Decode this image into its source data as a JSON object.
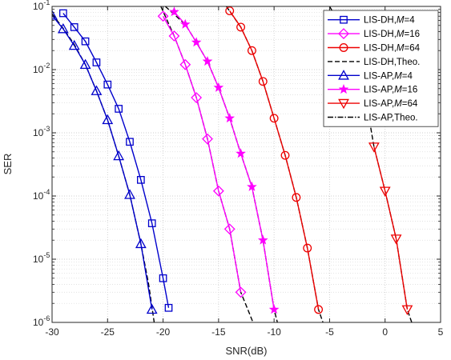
{
  "chart_data": {
    "type": "line",
    "title": "",
    "xlabel": "SNR(dB)",
    "ylabel": "SER",
    "xlim": [
      -30,
      5
    ],
    "ylim": [
      1e-06,
      0.1
    ],
    "yscale": "log",
    "grid": "major and minor, dotted",
    "legend_placement": "top-right",
    "x_ticks": [
      "-30",
      "-25",
      "-20",
      "-15",
      "-10",
      "-5",
      "0",
      "5"
    ],
    "y_ticks": [
      {
        "base": "10",
        "exp": "-6"
      },
      {
        "base": "10",
        "exp": "-5"
      },
      {
        "base": "10",
        "exp": "-4"
      },
      {
        "base": "10",
        "exp": "-3"
      },
      {
        "base": "10",
        "exp": "-2"
      },
      {
        "base": "10",
        "exp": "-1"
      }
    ],
    "series": [
      {
        "name": "LIS-DH,M=4",
        "name_prefix": "LIS-DH,",
        "name_var": "M",
        "name_suffix": "=4",
        "color": "#0000CC",
        "marker": "square",
        "x": [
          -29,
          -28,
          -27,
          -26,
          -25,
          -24,
          -23,
          -22,
          -21,
          -20,
          -19.5
        ],
        "y": [
          0.078,
          0.047,
          0.028,
          0.013,
          0.0058,
          0.0024,
          0.00072,
          0.00018,
          3.7e-05,
          5e-06,
          1.7e-06
        ]
      },
      {
        "name": "LIS-DH,M=16",
        "name_prefix": "LIS-DH,",
        "name_var": "M",
        "name_suffix": "=16",
        "color": "#FF00FF",
        "marker": "diamond",
        "x": [
          -20,
          -19,
          -18,
          -17,
          -16,
          -15,
          -14,
          -13
        ],
        "y": [
          0.07,
          0.034,
          0.012,
          0.0036,
          0.0008,
          0.00012,
          3e-05,
          3e-06
        ]
      },
      {
        "name": "LIS-DH,M=64",
        "name_prefix": "LIS-DH,",
        "name_var": "M",
        "name_suffix": "=64",
        "color": "#EE0000",
        "marker": "circle",
        "x": [
          -14,
          -13,
          -12,
          -11,
          -10,
          -9,
          -8,
          -7,
          -6
        ],
        "y": [
          0.085,
          0.047,
          0.02,
          0.0065,
          0.0017,
          0.00044,
          9.5e-05,
          1.5e-05,
          1.6e-06
        ]
      },
      {
        "name": "LIS-DH,Theo.",
        "color": "#000000",
        "dash": "dashed",
        "x": [
          -29.6,
          -28,
          -26,
          -24,
          -22.5,
          -21.5,
          -20.5,
          -19.8,
          -19.4,
          -19.1
        ],
        "y": [
          0.1,
          0.047,
          0.013,
          0.0024,
          0.00045,
          8.5e-05,
          1.45e-05,
          3.5e-06,
          1.5e-06,
          1e-06
        ]
      },
      {
        "name": "LIS-AP,M=4",
        "name_prefix": "LIS-AP,",
        "name_var": "M",
        "name_suffix": "=4",
        "color": "#0000CC",
        "marker": "triangle-up",
        "x": [
          -30,
          -29,
          -28,
          -27,
          -26,
          -25,
          -24,
          -23,
          -22,
          -21
        ],
        "y": [
          0.072,
          0.044,
          0.024,
          0.012,
          0.0046,
          0.0016,
          0.00043,
          0.000105,
          1.75e-05,
          1.6e-06
        ]
      },
      {
        "name": "LIS-AP,M=16",
        "name_prefix": "LIS-AP,",
        "name_var": "M",
        "name_suffix": "=16",
        "color": "#FF00FF",
        "marker": "star",
        "x": [
          -19,
          -18,
          -17,
          -16,
          -15,
          -14,
          -13,
          -12,
          -11,
          -10
        ],
        "y": [
          0.082,
          0.052,
          0.027,
          0.0135,
          0.0052,
          0.0017,
          0.00047,
          0.00014,
          2e-05,
          1.6e-06
        ]
      },
      {
        "name": "LIS-AP,M=64",
        "name_prefix": "LIS-AP,",
        "name_var": "M",
        "name_suffix": "=64",
        "color": "#EE0000",
        "marker": "triangle-down",
        "x": [
          -1,
          0,
          1,
          2
        ],
        "y": [
          0.0006,
          0.00012,
          2.1e-05,
          1.6e-06
        ]
      },
      {
        "name": "LIS-AP,Theo.",
        "color": "#000000",
        "dash": "dashdot",
        "x": [
          -5,
          -3,
          -2,
          -1,
          0,
          1,
          2,
          2.4
        ],
        "y": [
          0.1,
          0.025,
          0.0065,
          0.0006,
          0.00012,
          2.1e-05,
          1.6e-06,
          1e-06
        ]
      }
    ],
    "theory_curves": [
      {
        "x": [
          -30,
          -29,
          -28,
          -27,
          -26,
          -25,
          -24,
          -23,
          -22,
          -21.3,
          -20.8
        ],
        "y": [
          0.076,
          0.045,
          0.025,
          0.012,
          0.0046,
          0.0016,
          0.00043,
          0.000105,
          1.75e-05,
          4e-06,
          1e-06
        ]
      },
      {
        "x": [
          -20.2,
          -19,
          -18,
          -17,
          -16,
          -15,
          -14,
          -13,
          -12.3,
          -11.9
        ],
        "y": [
          0.1,
          0.034,
          0.012,
          0.0036,
          0.0008,
          0.00012,
          3e-05,
          3e-06,
          1.5e-06,
          1e-06
        ]
      },
      {
        "x": [
          -19.8,
          -18,
          -17,
          -16,
          -15,
          -14,
          -13,
          -12,
          -11,
          -10,
          -9.7
        ],
        "y": [
          0.1,
          0.052,
          0.027,
          0.0135,
          0.0052,
          0.0017,
          0.00047,
          0.00014,
          2e-05,
          1.6e-06,
          1e-06
        ]
      },
      {
        "x": [
          -14.3,
          -13,
          -12,
          -11,
          -10,
          -9,
          -8,
          -7,
          -6,
          -5.6
        ],
        "y": [
          0.1,
          0.047,
          0.02,
          0.0065,
          0.0017,
          0.00044,
          9.5e-05,
          1.5e-05,
          1.6e-06,
          1e-06
        ]
      },
      {
        "x": [
          -5,
          -3,
          -2,
          -1,
          0,
          1,
          2,
          2.4
        ],
        "y": [
          0.1,
          0.025,
          0.0065,
          0.0006,
          0.00012,
          2.1e-05,
          1.6e-06,
          1e-06
        ]
      }
    ]
  }
}
